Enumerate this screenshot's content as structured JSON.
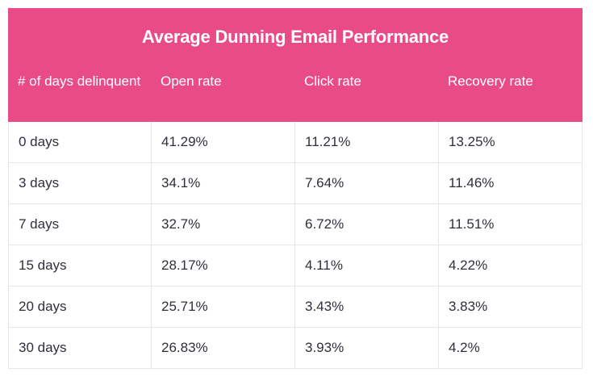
{
  "table": {
    "title": "Average Dunning Email Performance",
    "columns": [
      "# of days delinquent",
      "Open rate",
      "Click rate",
      "Recovery rate"
    ],
    "rows": [
      [
        "0 days",
        "41.29%",
        "11.21%",
        "13.25%"
      ],
      [
        "3 days",
        "34.1%",
        "7.64%",
        "11.46%"
      ],
      [
        "7 days",
        "32.7%",
        "6.72%",
        "11.51%"
      ],
      [
        "15 days",
        "28.17%",
        "4.11%",
        "4.22%"
      ],
      [
        "20 days",
        "25.71%",
        "3.43%",
        "3.83%"
      ],
      [
        "30 days",
        "26.83%",
        "3.93%",
        "4.2%"
      ]
    ],
    "header_color": "#e94b87"
  }
}
